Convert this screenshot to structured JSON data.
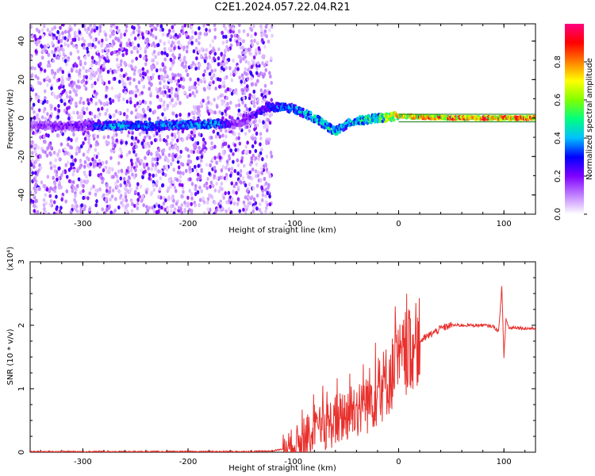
{
  "title": "C2E1.2024.057.22.04.R21",
  "colors": {
    "snr_line": "#e8312d",
    "axis": "#000000",
    "carrier": "#0a7a0a",
    "colorbar": [
      "#ffffff",
      "#c080ff",
      "#8000ff",
      "#0000ff",
      "#00c0ff",
      "#00ff80",
      "#80ff00",
      "#ffff00",
      "#ff8000",
      "#ff0000",
      "#ff0080"
    ]
  },
  "chart_data": [
    {
      "type": "heatmap",
      "xlabel": "Height of straight line (km)",
      "ylabel": "Frequency (Hz)",
      "xlim": [
        -350,
        130
      ],
      "ylim": [
        -50,
        49
      ],
      "xticks": [
        -300,
        -200,
        -100,
        0,
        100
      ],
      "xtick_labels": [
        "-300",
        "-200",
        "-100",
        "0",
        "100"
      ],
      "yticks": [
        -40,
        -20,
        0,
        20,
        40
      ],
      "ytick_labels": [
        "-40",
        "-20",
        "0",
        "20",
        "40"
      ],
      "colorbar": {
        "label": "Normalized spectral amplitude",
        "range": [
          0,
          1
        ],
        "ticks": [
          0.0,
          0.2,
          0.4,
          0.6,
          0.8
        ],
        "tick_labels": [
          "0.0",
          "0.2",
          "0.4",
          "0.6",
          "0.8"
        ]
      },
      "signal_track": [
        {
          "x": -350,
          "f": -4,
          "amp": 0.2
        },
        {
          "x": -300,
          "f": -4,
          "amp": 0.25
        },
        {
          "x": -270,
          "f": -4,
          "amp": 0.45
        },
        {
          "x": -230,
          "f": -4,
          "amp": 0.4
        },
        {
          "x": -175,
          "f": -3,
          "amp": 0.45
        },
        {
          "x": -150,
          "f": -3,
          "amp": 0.2
        },
        {
          "x": -125,
          "f": 6,
          "amp": 0.35
        },
        {
          "x": -100,
          "f": 5,
          "amp": 0.45
        },
        {
          "x": -80,
          "f": 0,
          "amp": 0.5
        },
        {
          "x": -60,
          "f": -7,
          "amp": 0.5
        },
        {
          "x": -45,
          "f": -2,
          "amp": 0.45
        },
        {
          "x": -20,
          "f": 0,
          "amp": 0.6
        },
        {
          "x": 0,
          "f": 1,
          "amp": 0.8
        },
        {
          "x": 50,
          "f": 0,
          "amp": 0.9
        },
        {
          "x": 100,
          "f": 0,
          "amp": 0.9
        },
        {
          "x": 130,
          "f": 0,
          "amp": 0.9
        }
      ],
      "noise_region_x": [
        -350,
        -120
      ]
    },
    {
      "type": "line",
      "xlabel": "Height of straight line (km)",
      "ylabel": "SNR (10 * v/v)",
      "y_multiplier": "(x10⁴)",
      "xlim": [
        -350,
        130
      ],
      "ylim": [
        0,
        3
      ],
      "xticks": [
        -300,
        -200,
        -100,
        0,
        100
      ],
      "xtick_labels": [
        "-300",
        "-200",
        "-100",
        "0",
        "100"
      ],
      "yticks": [
        0,
        1,
        2,
        3
      ],
      "ytick_labels": [
        "0",
        "1",
        "2",
        "3"
      ],
      "series": [
        {
          "x": [
            -350,
            -300,
            -250,
            -200,
            -150,
            -120,
            -110,
            -100,
            -90,
            -80,
            -70,
            -60,
            -50,
            -40,
            -30,
            -20,
            -10,
            0,
            10,
            20,
            30,
            40,
            50,
            60,
            70,
            80,
            90,
            95,
            98,
            100,
            102,
            105,
            110,
            120,
            130
          ],
          "y": [
            0.01,
            0.01,
            0.01,
            0.01,
            0.01,
            0.02,
            0.05,
            0.1,
            0.2,
            0.3,
            0.4,
            0.5,
            0.6,
            0.7,
            0.8,
            0.95,
            1.15,
            1.4,
            1.6,
            1.75,
            1.85,
            1.95,
            2.0,
            2.0,
            2.0,
            2.0,
            1.98,
            1.9,
            2.6,
            1.5,
            2.1,
            1.95,
            1.97,
            1.95,
            1.95
          ]
        }
      ]
    }
  ]
}
